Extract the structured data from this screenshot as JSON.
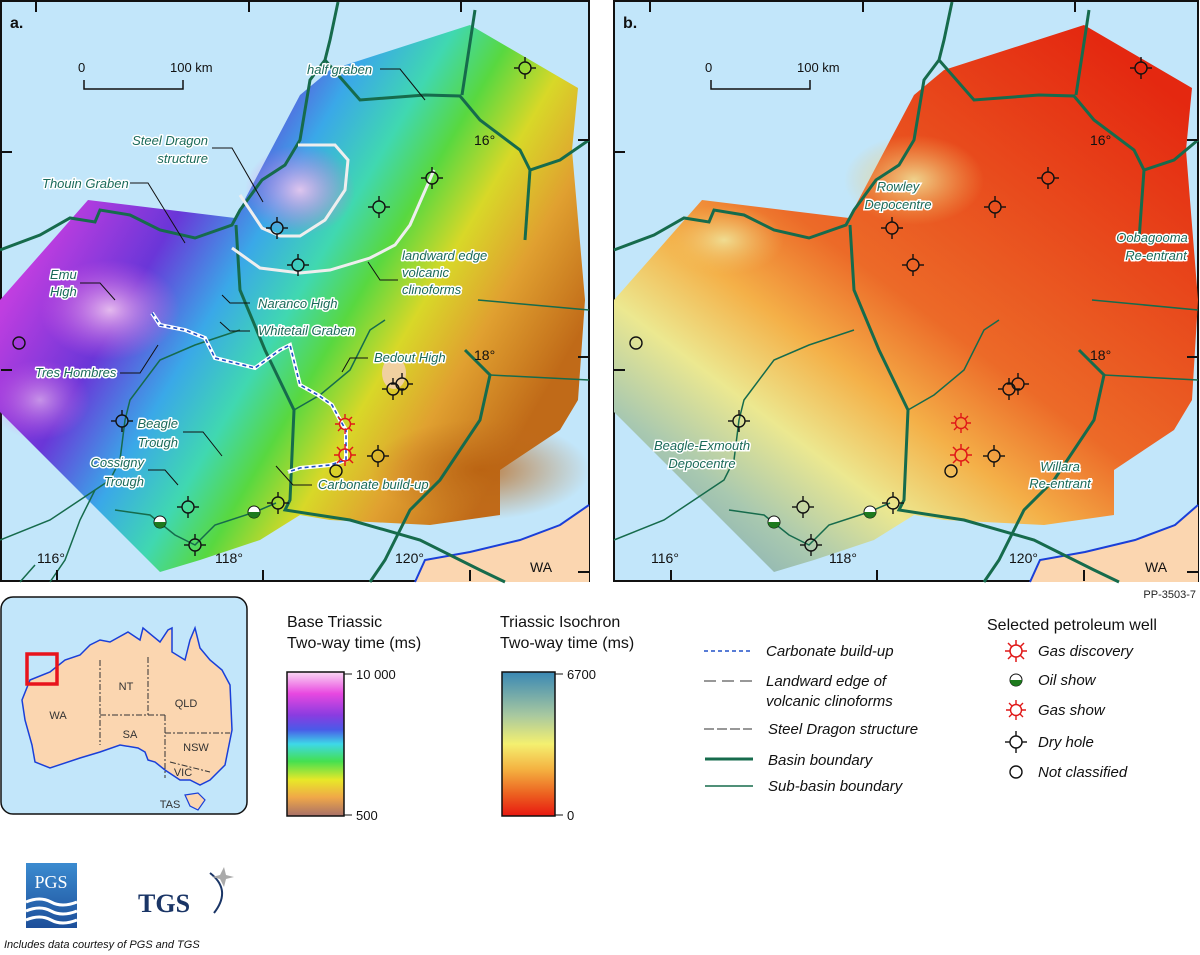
{
  "figure_id": "PP-3503-7",
  "panel_a": {
    "label": "a.",
    "scale": {
      "zero": "0",
      "end": "100 km"
    },
    "lat_labels": [
      "16°",
      "18°"
    ],
    "lon_labels": [
      "116°",
      "118°",
      "120°"
    ],
    "state_label": "WA",
    "features": {
      "half_graben": "half graben",
      "steel_dragon_1": "Steel Dragon",
      "steel_dragon_2": "structure",
      "thouin_graben": "Thouin Graben",
      "emu_1": "Emu",
      "emu_2": "High",
      "landward_1": "landward edge",
      "landward_2": "volcanic",
      "landward_3": "clinoforms",
      "naranco_high": "Naranco High",
      "whitetail_graben": "Whitetail Graben",
      "tres_hombres": "Tres Hombres",
      "bedout_high": "Bedout High",
      "beagle_1": "Beagle",
      "beagle_2": "Trough",
      "cossigny_1": "Cossigny",
      "cossigny_2": "Trough",
      "carbonate": "Carbonate build-up"
    }
  },
  "panel_b": {
    "label": "b.",
    "scale": {
      "zero": "0",
      "end": "100 km"
    },
    "lat_labels": [
      "16°",
      "18°"
    ],
    "lon_labels": [
      "116°",
      "118°",
      "120°"
    ],
    "state_label": "WA",
    "features": {
      "rowley_1": "Rowley",
      "rowley_2": "Depocentre",
      "oobagooma_1": "Oobagooma",
      "oobagooma_2": "Re-entrant",
      "beagle_exmouth_1": "Beagle-Exmouth",
      "beagle_exmouth_2": "Depocentre",
      "willara_1": "Willara",
      "willara_2": "Re-entrant"
    }
  },
  "inset": {
    "states": [
      "WA",
      "NT",
      "QLD",
      "SA",
      "NSW",
      "VIC",
      "TAS"
    ],
    "colors": {
      "ocean": "#c2e6fa",
      "land": "#fbd6b0",
      "coast": "#1a3fd8",
      "locator": "#e8141c"
    }
  },
  "colorbar_a": {
    "title_1": "Base Triassic",
    "title_2": "Two-way time (ms)",
    "max": "10 000",
    "min": "500",
    "colors": [
      "#fbd8f4",
      "#e848e0",
      "#8a3ce0",
      "#4a5ae8",
      "#3ed8e8",
      "#44e050",
      "#e8e828",
      "#f0a848",
      "#a87068"
    ]
  },
  "colorbar_b": {
    "title_1": "Triassic Isochron",
    "title_2": "Two-way time (ms)",
    "max": "6700",
    "min": "0",
    "colors": [
      "#3a88b4",
      "#a8c8a0",
      "#f4f070",
      "#f4b040",
      "#ec6020",
      "#e81810"
    ]
  },
  "line_legend": [
    {
      "label": "Carbonate build-up",
      "style": "blue-dashed"
    },
    {
      "label": "Landward edge of",
      "label_2": "volcanic clinoforms",
      "style": "grey-long-dash"
    },
    {
      "label": "Steel Dragon structure",
      "style": "grey-dashed"
    },
    {
      "label": "Basin boundary",
      "style": "thick-green"
    },
    {
      "label": "Sub-basin boundary",
      "style": "thin-green"
    }
  ],
  "well_legend": {
    "title": "Selected petroleum well",
    "items": [
      {
        "label": "Gas discovery",
        "icon": "gas-discovery-icon"
      },
      {
        "label": "Oil show",
        "icon": "oil-show-icon"
      },
      {
        "label": "Gas show",
        "icon": "gas-show-icon"
      },
      {
        "label": "Dry hole",
        "icon": "dry-hole-icon"
      },
      {
        "label": "Not classified",
        "icon": "not-classified-icon"
      }
    ]
  },
  "logos": {
    "pgs": "PGS",
    "tgs": "TGS"
  },
  "credit": "Includes data courtesy of PGS and TGS"
}
